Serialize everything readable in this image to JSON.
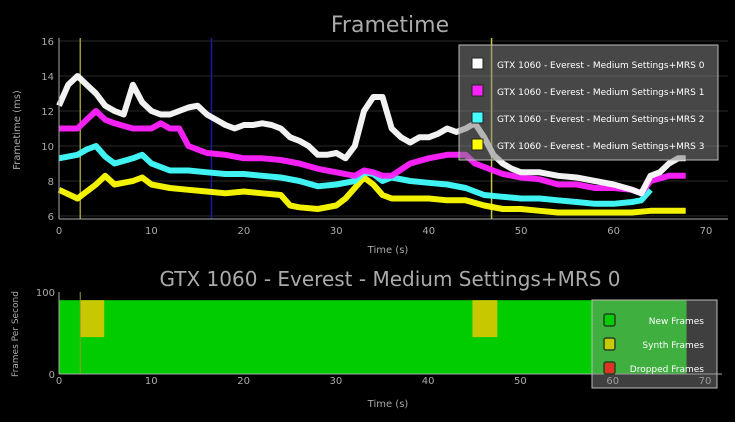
{
  "chart_data": [
    {
      "type": "line",
      "title": "Frametime",
      "xlabel": "Time (s)",
      "ylabel": "Frametime (ms)",
      "xlim": [
        0,
        70
      ],
      "ylim": [
        6,
        16
      ],
      "xticks": [
        "0",
        "10",
        "20",
        "30",
        "40",
        "50",
        "60",
        "70"
      ],
      "yticks": [
        "6",
        "8",
        "10",
        "12",
        "14",
        "16"
      ],
      "grid": true,
      "legend_position": "top-right",
      "markers": [
        {
          "x": 2.3,
          "color": "#9a9a30"
        },
        {
          "x": 16.5,
          "color": "#1a1aa0"
        },
        {
          "x": 46.8,
          "color": "#c8c840"
        }
      ],
      "series": [
        {
          "name": "GTX 1060 - Everest - Medium Settings+MRS 0",
          "color": "#ffffff",
          "x": [
            0,
            1,
            2,
            3,
            4,
            5,
            6,
            7,
            8,
            9,
            10,
            11,
            12,
            13,
            14,
            15,
            16,
            17,
            18,
            19,
            20,
            21,
            22,
            23,
            24,
            25,
            26,
            27,
            28,
            29,
            30,
            31,
            32,
            33,
            34,
            35,
            36,
            37,
            38,
            39,
            40,
            41,
            42,
            43,
            44,
            45,
            46,
            47,
            48,
            49,
            50,
            52,
            54,
            56,
            58,
            60,
            62,
            63,
            64,
            65,
            66,
            67,
            67.8
          ],
          "y": [
            12.3,
            13.5,
            14,
            13.5,
            13,
            12.3,
            12,
            11.8,
            13.5,
            12.5,
            12,
            11.8,
            11.8,
            12,
            12.2,
            12.3,
            11.8,
            11.5,
            11.2,
            11,
            11.2,
            11.2,
            11.3,
            11.2,
            11,
            10.5,
            10.3,
            10,
            9.5,
            9.5,
            9.6,
            9.3,
            10,
            12,
            12.8,
            12.8,
            11,
            10.5,
            10.2,
            10.5,
            10.5,
            10.7,
            11,
            10.8,
            11,
            11.3,
            10.5,
            9.5,
            9,
            8.7,
            8.5,
            8.5,
            8.3,
            8.2,
            8,
            7.8,
            7.5,
            7.3,
            8.3,
            8.5,
            9,
            9.3,
            9.3
          ]
        },
        {
          "name": "GTX 1060 - Everest - Medium Settings+MRS 1",
          "color": "#ff22ff",
          "x": [
            0,
            2,
            3,
            4,
            5,
            6,
            8,
            10,
            11,
            12,
            13,
            14,
            15,
            16,
            18,
            20,
            22,
            24,
            26,
            28,
            30,
            32,
            33,
            34,
            35,
            36,
            38,
            40,
            42,
            44,
            45,
            46,
            47,
            48,
            50,
            52,
            54,
            56,
            58,
            60,
            62,
            63,
            64,
            66,
            67.8
          ],
          "y": [
            11,
            11,
            11.5,
            12,
            11.5,
            11.3,
            11,
            11,
            11.3,
            11,
            11,
            10,
            9.8,
            9.6,
            9.5,
            9.3,
            9.3,
            9.2,
            9,
            8.7,
            8.5,
            8.3,
            8.6,
            8.5,
            8.3,
            8.3,
            9,
            9.3,
            9.5,
            9.5,
            9,
            8.8,
            8.6,
            8.4,
            8.2,
            8.1,
            7.8,
            7.8,
            7.6,
            7.6,
            7.5,
            7.3,
            8,
            8.3,
            8.3
          ]
        },
        {
          "name": "GTX 1060 - Everest - Medium Settings+MRS 2",
          "color": "#44ffff",
          "x": [
            0,
            2,
            3,
            4,
            5,
            6,
            8,
            9,
            10,
            12,
            14,
            16,
            18,
            20,
            22,
            24,
            26,
            28,
            30,
            32,
            33,
            34,
            35,
            36,
            38,
            40,
            42,
            44,
            45,
            46,
            48,
            50,
            52,
            54,
            56,
            58,
            60,
            62,
            63,
            64
          ],
          "y": [
            9.3,
            9.5,
            9.8,
            10,
            9.4,
            9,
            9.3,
            9.5,
            9,
            8.6,
            8.6,
            8.5,
            8.4,
            8.4,
            8.3,
            8.2,
            8,
            7.7,
            7.8,
            8,
            8.5,
            8.4,
            8,
            8.2,
            8,
            7.9,
            7.8,
            7.6,
            7.4,
            7.2,
            7.1,
            7,
            7,
            6.9,
            6.8,
            6.7,
            6.7,
            6.8,
            6.9,
            7.5
          ]
        },
        {
          "name": "GTX 1060 - Everest - Medium Settings+MRS 3",
          "color": "#ffff00",
          "x": [
            0,
            2,
            3,
            4,
            5,
            6,
            8,
            9,
            10,
            12,
            14,
            16,
            18,
            20,
            22,
            24,
            25,
            26,
            28,
            30,
            31,
            32,
            33,
            34,
            35,
            36,
            38,
            40,
            42,
            44,
            46,
            48,
            50,
            52,
            54,
            56,
            58,
            60,
            62,
            64,
            66,
            67.8
          ],
          "y": [
            7.5,
            7,
            7.4,
            7.8,
            8.3,
            7.8,
            8,
            8.2,
            7.8,
            7.6,
            7.5,
            7.4,
            7.3,
            7.4,
            7.3,
            7.2,
            6.6,
            6.5,
            6.4,
            6.6,
            7,
            7.6,
            8.2,
            7.8,
            7.2,
            7,
            7,
            7,
            6.9,
            6.9,
            6.6,
            6.4,
            6.4,
            6.3,
            6.2,
            6.2,
            6.2,
            6.2,
            6.2,
            6.3,
            6.3,
            6.3
          ]
        }
      ]
    },
    {
      "type": "area",
      "title": "GTX 1060 - Everest - Medium Settings+MRS 0",
      "xlabel": "Time (s)",
      "ylabel": "Frames Per Second",
      "xlim": [
        0,
        70
      ],
      "ylim": [
        0,
        100
      ],
      "xticks": [
        "0",
        "10",
        "20",
        "30",
        "40",
        "50",
        "60",
        "70"
      ],
      "yticks": [
        "0",
        "100"
      ],
      "legend_position": "bottom-right",
      "new_frames": {
        "name": "New Frames",
        "color": "#00cc00",
        "fps": 90,
        "x_end": 68
      },
      "synth_frames": {
        "name": "Synth Frames",
        "color": "#c8c800",
        "segments": [
          {
            "x0": 2.3,
            "x1": 4.9,
            "fps_from": 45,
            "fps_to": 90
          },
          {
            "x0": 44.8,
            "x1": 47.5,
            "fps_from": 45,
            "fps_to": 90
          }
        ]
      },
      "dropped_frames": {
        "name": "Dropped Frames",
        "color": "#dd3322"
      }
    }
  ]
}
